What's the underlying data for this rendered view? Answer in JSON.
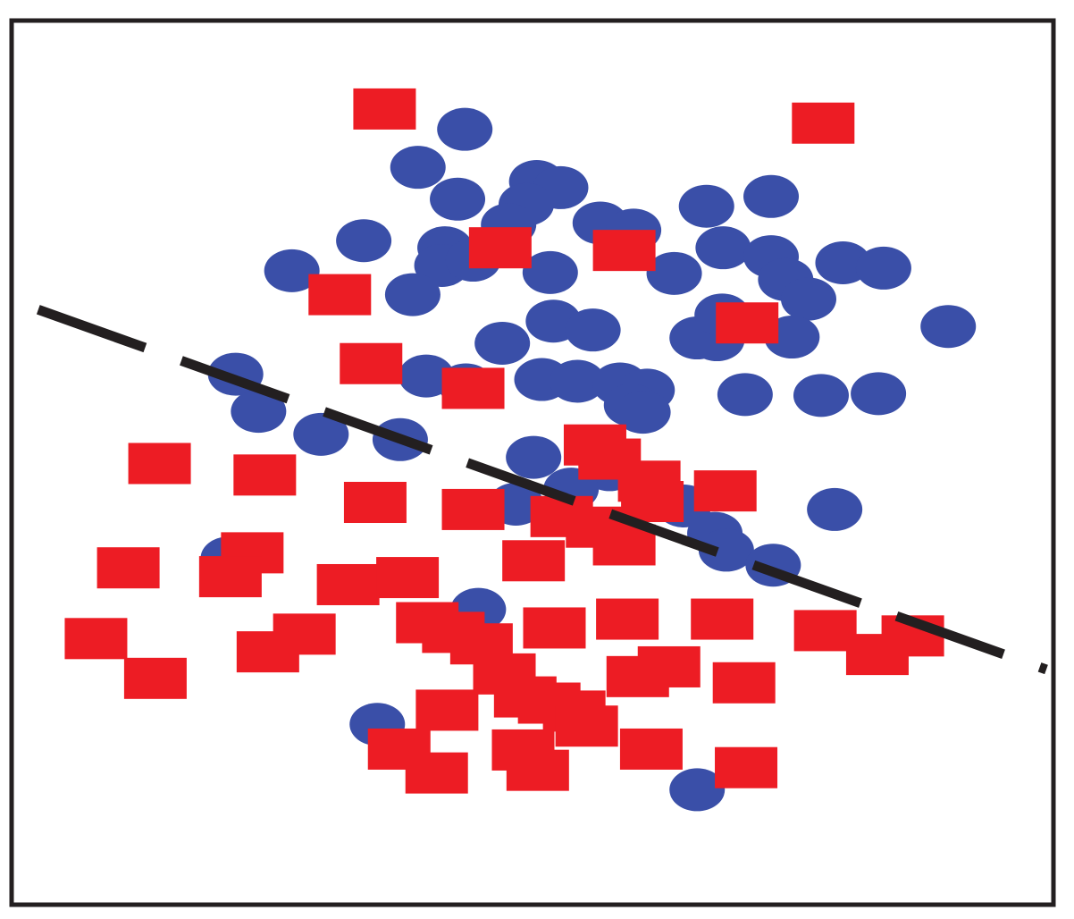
{
  "chart_data": {
    "type": "scatter",
    "title": "",
    "xlabel": "",
    "ylabel": "",
    "axes_visible": false,
    "grid": false,
    "legend": "none",
    "xlim": [
      0,
      100
    ],
    "ylim": [
      0,
      100
    ],
    "colors": {
      "frame": "#231f20",
      "circle": "#3a4fa8",
      "square": "#ed1c24",
      "boundary": "#231f20"
    },
    "series": [
      {
        "marker": "circle",
        "color": "#3a4fa8",
        "points": [
          [
            43.5,
            87.7
          ],
          [
            39.0,
            83.4
          ],
          [
            42.8,
            79.8
          ],
          [
            50.4,
            81.8
          ],
          [
            52.7,
            81.1
          ],
          [
            49.4,
            79.2
          ],
          [
            47.7,
            76.9
          ],
          [
            33.8,
            75.1
          ],
          [
            41.6,
            74.3
          ],
          [
            41.3,
            72.3
          ],
          [
            44.3,
            72.9
          ],
          [
            26.9,
            71.7
          ],
          [
            38.5,
            69.0
          ],
          [
            51.7,
            71.5
          ],
          [
            56.5,
            77.1
          ],
          [
            59.7,
            76.3
          ],
          [
            63.6,
            71.4
          ],
          [
            66.7,
            79.0
          ],
          [
            72.9,
            80.1
          ],
          [
            68.3,
            74.3
          ],
          [
            72.9,
            73.3
          ],
          [
            74.3,
            70.7
          ],
          [
            76.5,
            68.5
          ],
          [
            79.8,
            72.6
          ],
          [
            83.7,
            72.0
          ],
          [
            52.0,
            66.0
          ],
          [
            55.8,
            65.0
          ],
          [
            47.1,
            63.5
          ],
          [
            21.5,
            60.0
          ],
          [
            43.6,
            58.8
          ],
          [
            39.8,
            59.8
          ],
          [
            50.9,
            59.4
          ],
          [
            54.3,
            59.2
          ],
          [
            58.4,
            58.9
          ],
          [
            61.0,
            58.2
          ],
          [
            59.5,
            56.5
          ],
          [
            60.6,
            55.7
          ],
          [
            65.8,
            64.1
          ],
          [
            67.7,
            63.9
          ],
          [
            68.2,
            66.7
          ],
          [
            74.9,
            64.2
          ],
          [
            70.4,
            57.7
          ],
          [
            77.7,
            57.6
          ],
          [
            83.2,
            57.8
          ],
          [
            89.9,
            65.4
          ],
          [
            37.3,
            52.6
          ],
          [
            23.7,
            55.8
          ],
          [
            29.7,
            53.2
          ],
          [
            50.1,
            50.6
          ],
          [
            57.4,
            49.2
          ],
          [
            48.4,
            45.3
          ],
          [
            53.7,
            47.0
          ],
          [
            64.5,
            45.1
          ],
          [
            67.5,
            42.0
          ],
          [
            68.6,
            40.1
          ],
          [
            73.1,
            38.4
          ],
          [
            79.0,
            44.7
          ],
          [
            20.8,
            39.2
          ],
          [
            44.8,
            33.4
          ],
          [
            35.1,
            20.4
          ],
          [
            65.8,
            13.0
          ]
        ]
      },
      {
        "marker": "square",
        "color": "#ed1c24",
        "points": [
          [
            35.8,
            90.0
          ],
          [
            77.9,
            88.4
          ],
          [
            46.9,
            74.3
          ],
          [
            58.8,
            74.0
          ],
          [
            31.5,
            69.0
          ],
          [
            70.6,
            65.8
          ],
          [
            34.5,
            61.2
          ],
          [
            44.3,
            58.4
          ],
          [
            56.0,
            52.0
          ],
          [
            57.4,
            50.4
          ],
          [
            61.2,
            47.9
          ],
          [
            68.5,
            46.8
          ],
          [
            14.2,
            49.9
          ],
          [
            24.3,
            48.6
          ],
          [
            34.9,
            45.5
          ],
          [
            44.3,
            44.7
          ],
          [
            52.8,
            43.9
          ],
          [
            61.5,
            45.6
          ],
          [
            56.2,
            42.7
          ],
          [
            58.8,
            40.7
          ],
          [
            23.1,
            39.8
          ],
          [
            21.0,
            37.1
          ],
          [
            11.2,
            38.1
          ],
          [
            32.3,
            36.2
          ],
          [
            38.0,
            37.0
          ],
          [
            50.1,
            38.9
          ],
          [
            8.1,
            30.1
          ],
          [
            28.1,
            30.6
          ],
          [
            24.6,
            28.6
          ],
          [
            39.9,
            31.9
          ],
          [
            42.4,
            30.8
          ],
          [
            45.1,
            29.5
          ],
          [
            52.1,
            31.3
          ],
          [
            59.1,
            32.3
          ],
          [
            68.2,
            32.3
          ],
          [
            63.1,
            26.9
          ],
          [
            60.1,
            25.8
          ],
          [
            78.1,
            31.0
          ],
          [
            86.5,
            30.4
          ],
          [
            83.1,
            28.3
          ],
          [
            70.3,
            25.1
          ],
          [
            47.3,
            26.1
          ],
          [
            49.3,
            23.5
          ],
          [
            51.6,
            22.8
          ],
          [
            41.8,
            22.0
          ],
          [
            54.0,
            21.9
          ],
          [
            55.2,
            20.2
          ],
          [
            13.8,
            25.6
          ],
          [
            37.2,
            17.6
          ],
          [
            40.8,
            14.9
          ],
          [
            49.1,
            17.5
          ],
          [
            50.5,
            15.2
          ],
          [
            61.4,
            17.6
          ],
          [
            70.5,
            15.5
          ]
        ]
      }
    ],
    "boundary": {
      "style": "dashed",
      "x": [
        0,
        100
      ],
      "y": [
        68.4,
        26.8
      ]
    }
  }
}
